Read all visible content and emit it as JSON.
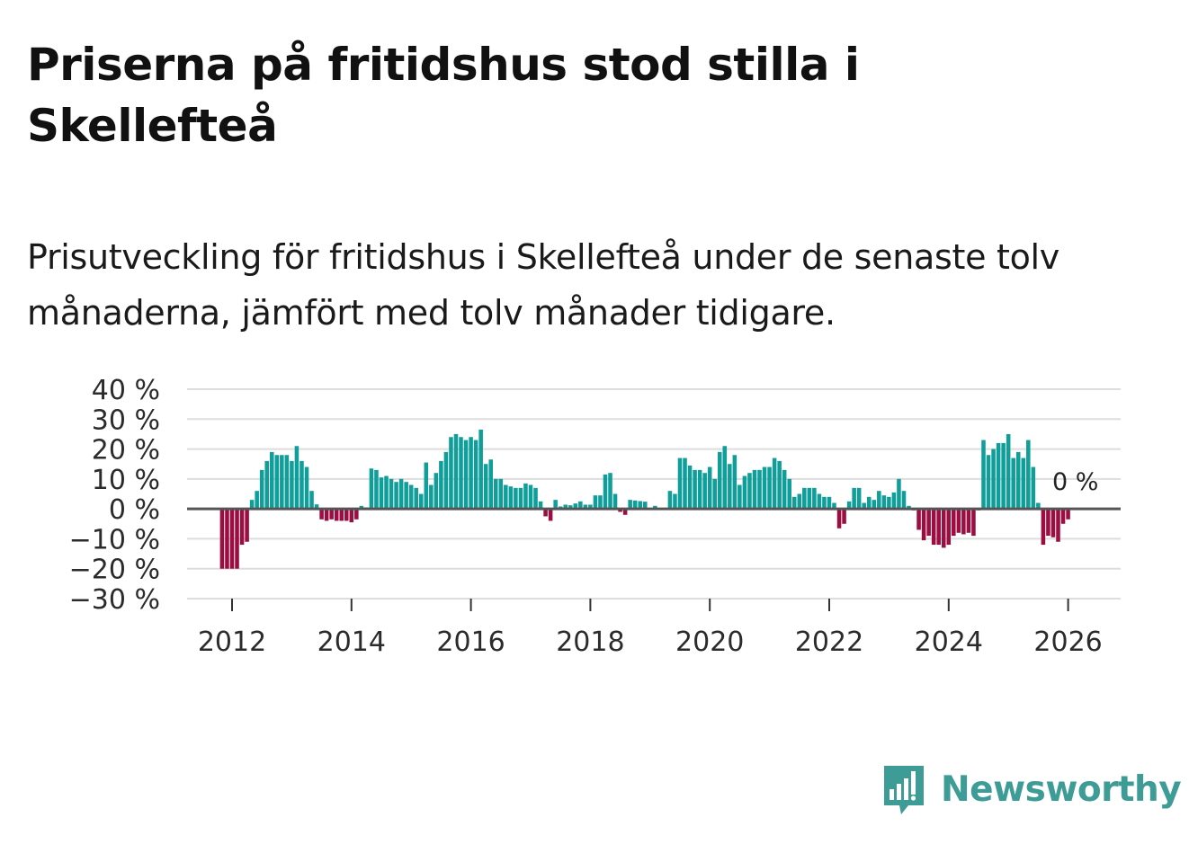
{
  "header": {
    "title": "Priserna på fritidshus stod stilla i Skellefteå",
    "subtitle": "Prisutveckling för fritidshus i Skellefteå under de senaste tolv månaderna, jämfört med tolv månader tidigare."
  },
  "brand": {
    "name": "Newsworthy",
    "color": "#3e9c97",
    "icon": "newsworthy-chart-bubble-icon"
  },
  "colors": {
    "positive": "#0f9e9a",
    "negative": "#9b0e42",
    "grid": "#dddddd",
    "zero_line": "#555555"
  },
  "chart_data": {
    "type": "bar",
    "title": "Priserna på fritidshus stod stilla i Skellefteå",
    "xlabel": "",
    "ylabel": "",
    "ylim": [
      -30,
      40
    ],
    "y_ticks": [
      40,
      30,
      20,
      10,
      0,
      -10,
      -20,
      -30
    ],
    "y_tick_labels": [
      "40 %",
      "30 %",
      "20 %",
      "10 %",
      "0 %",
      "−10 %",
      "−20 %",
      "−30 %"
    ],
    "x_ticks": [
      2012,
      2014,
      2016,
      2018,
      2020,
      2022,
      2024,
      2026
    ],
    "x_tick_labels": [
      "2012",
      "2014",
      "2016",
      "2018",
      "2020",
      "2022",
      "2024",
      "2026"
    ],
    "x_start": 2011.75,
    "step_years": 0.08333,
    "end_label": "0 %",
    "values": [
      0,
      -20,
      -20,
      -20,
      -20,
      -12,
      -11,
      3,
      6,
      13,
      16,
      19,
      18,
      18,
      18,
      16,
      21,
      16,
      14,
      6,
      1.5,
      -3.5,
      -4,
      -3.5,
      -4,
      -4,
      -4,
      -4.5,
      -3.5,
      1,
      0.5,
      13.5,
      13,
      10.5,
      11,
      10,
      9,
      10,
      9,
      8,
      7,
      5,
      15.5,
      8,
      12,
      16,
      19,
      24,
      25,
      24,
      23,
      24,
      23,
      26.5,
      15,
      16.5,
      10,
      10,
      8,
      7.5,
      7,
      7,
      8.5,
      8,
      7,
      2.5,
      -2.5,
      -4,
      3,
      0.8,
      1.4,
      1.2,
      1.8,
      2.5,
      1.4,
      1.4,
      4.5,
      4.5,
      11.5,
      12,
      5,
      -1,
      -2,
      3,
      2.8,
      2.6,
      2.4,
      0.3,
      1,
      0.3,
      0.2,
      6,
      5,
      17,
      17,
      14.5,
      13,
      13,
      12,
      14,
      10,
      19,
      21,
      15,
      18,
      8,
      11,
      12,
      13,
      13,
      14,
      14,
      17,
      16,
      13,
      10,
      4,
      5,
      7,
      7,
      7,
      5,
      4,
      4,
      2,
      -6.5,
      -5,
      2.5,
      7,
      7,
      2,
      4,
      3,
      6,
      4.5,
      4,
      5.5,
      10,
      6,
      1,
      -0.5,
      -7,
      -10.5,
      -9,
      -12,
      -12,
      -13,
      -12,
      -9,
      -8,
      -8.5,
      -8,
      -9,
      -0.5,
      23,
      18,
      20,
      22,
      22,
      25,
      17,
      19,
      17,
      23,
      14,
      2,
      -12,
      -9,
      -9.5,
      -11,
      -5,
      -3.5,
      0
    ]
  }
}
